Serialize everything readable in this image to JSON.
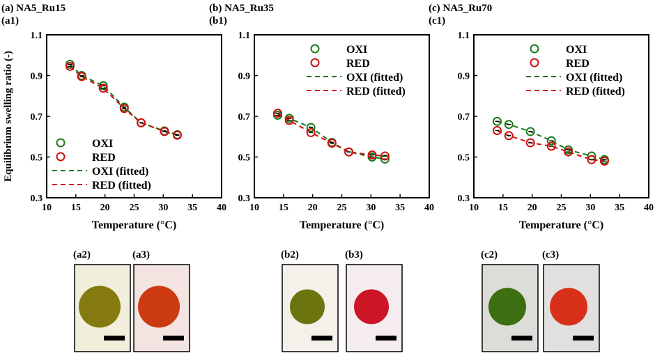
{
  "ylabel": "Equilibrium swelling ratio (-)",
  "colors": {
    "oxi": "#1a7a1a",
    "red": "#d01010"
  },
  "chart_data": [
    {
      "type": "scatter",
      "title": "(a) NA5_Ru15",
      "panel": "(a1)",
      "xlabel": "Temperature (°C)",
      "xlim": [
        10,
        40
      ],
      "ylim": [
        0.3,
        1.1
      ],
      "xticks": [
        "10",
        "15",
        "20",
        "25",
        "30",
        "35",
        "40"
      ],
      "yticks": [
        "0.3",
        "0.5",
        "0.7",
        "0.9",
        "1.1"
      ],
      "legend": "bottom-left",
      "x": [
        14,
        16,
        19.7,
        23.3,
        26.2,
        30.2,
        32.4
      ],
      "series": [
        {
          "name": "OXI",
          "values": [
            0.955,
            0.9,
            0.85,
            0.745,
            0.668,
            0.628,
            0.61
          ]
        },
        {
          "name": "RED",
          "values": [
            0.945,
            0.895,
            0.838,
            0.738,
            0.668,
            0.625,
            0.607
          ]
        },
        {
          "name": "OXI (fitted)"
        },
        {
          "name": "RED (fitted)"
        }
      ]
    },
    {
      "type": "scatter",
      "title": "(b) NA5_Ru35",
      "panel": "(b1)",
      "xlabel": "Temperature (°C)",
      "xlim": [
        10,
        40
      ],
      "ylim": [
        0.3,
        1.1
      ],
      "xticks": [
        "10",
        "15",
        "20",
        "25",
        "30",
        "35",
        "40"
      ],
      "yticks": [
        "0.3",
        "0.5",
        "0.7",
        "0.9",
        "1.1"
      ],
      "legend": "top-right",
      "x": [
        14,
        16,
        19.7,
        23.3,
        26.2,
        30.2,
        32.4
      ],
      "series": [
        {
          "name": "OXI",
          "values": [
            0.705,
            0.69,
            0.645,
            0.572,
            0.525,
            0.5,
            0.49
          ]
        },
        {
          "name": "RED",
          "values": [
            0.715,
            0.68,
            0.62,
            0.568,
            0.525,
            0.51,
            0.505
          ]
        },
        {
          "name": "OXI (fitted)"
        },
        {
          "name": "RED (fitted)"
        }
      ]
    },
    {
      "type": "scatter",
      "title": "(c) NA5_Ru70",
      "panel": "(c1)",
      "xlabel": "Temperature (°C)",
      "xlim": [
        10,
        40
      ],
      "ylim": [
        0.3,
        1.1
      ],
      "xticks": [
        "10",
        "15",
        "20",
        "25",
        "30",
        "35",
        "40"
      ],
      "yticks": [
        "0.3",
        "0.5",
        "0.7",
        "0.9",
        "1.1"
      ],
      "legend": "top-right",
      "x": [
        14,
        16,
        19.7,
        23.3,
        26.2,
        30.2,
        32.4
      ],
      "series": [
        {
          "name": "OXI",
          "values": [
            0.675,
            0.66,
            0.625,
            0.58,
            0.535,
            0.505,
            0.487
          ]
        },
        {
          "name": "RED",
          "values": [
            0.63,
            0.605,
            0.57,
            0.553,
            0.525,
            0.487,
            0.48
          ]
        },
        {
          "name": "OXI (fitted)"
        },
        {
          "name": "RED (fitted)"
        }
      ]
    }
  ],
  "photos": [
    {
      "label": "(a2)",
      "bg": "#f1eedc",
      "bead": "#857a10"
    },
    {
      "label": "(a3)",
      "bg": "#f3e4e2",
      "bead": "#cc3b12"
    },
    {
      "label": "(b2)",
      "bg": "#f3f1ea",
      "bead": "#6c7410"
    },
    {
      "label": "(b3)",
      "bg": "#f4ecee",
      "bead": "#cc1525"
    },
    {
      "label": "(c2)",
      "bg": "#dcdcd8",
      "bead": "#3c6e12"
    },
    {
      "label": "(c3)",
      "bg": "#e2e0de",
      "bead": "#d8301a"
    }
  ]
}
